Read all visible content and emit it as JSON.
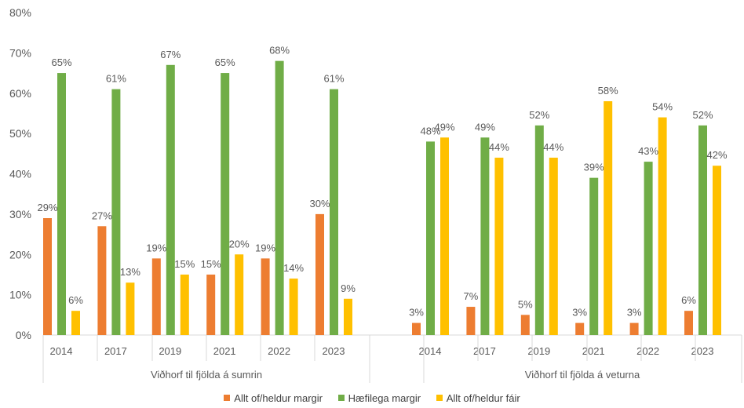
{
  "chart_data": {
    "type": "bar",
    "y_ticks": [
      "0%",
      "10%",
      "20%",
      "30%",
      "40%",
      "50%",
      "60%",
      "70%",
      "80%"
    ],
    "ylim": [
      0,
      80
    ],
    "grid": false,
    "legend_position": "bottom",
    "series_meta": [
      {
        "name": "Allt of/heldur margir",
        "color": "#ED7D31"
      },
      {
        "name": "Hæfilega margir",
        "color": "#70AD47"
      },
      {
        "name": "Allt of/heldur fáir",
        "color": "#FFC000"
      }
    ],
    "groups": [
      {
        "label": "Viðhorf til fjölda á sumrin",
        "categories": [
          "2014",
          "2017",
          "2019",
          "2021",
          "2022",
          "2023"
        ],
        "series": [
          {
            "name": "Allt of/heldur margir",
            "values": [
              29,
              27,
              19,
              15,
              19,
              30
            ],
            "labels": [
              "29%",
              "27%",
              "19%",
              "15%",
              "19%",
              "30%"
            ]
          },
          {
            "name": "Hæfilega margir",
            "values": [
              65,
              61,
              67,
              65,
              68,
              61
            ],
            "labels": [
              "65%",
              "61%",
              "67%",
              "65%",
              "68%",
              "61%"
            ]
          },
          {
            "name": "Allt of/heldur fáir",
            "values": [
              6,
              13,
              15,
              20,
              14,
              9
            ],
            "labels": [
              "6%",
              "13%",
              "15%",
              "20%",
              "14%",
              "9%"
            ]
          }
        ]
      },
      {
        "label": "Viðhorf til fjölda á veturna",
        "categories": [
          "2014",
          "2017",
          "2019",
          "2021",
          "2022",
          "2023"
        ],
        "series": [
          {
            "name": "Allt of/heldur margir",
            "values": [
              3,
              7,
              5,
              3,
              3,
              6
            ],
            "labels": [
              "3%",
              "7%",
              "5%",
              "3%",
              "3%",
              "6%"
            ]
          },
          {
            "name": "Hæfilega margir",
            "values": [
              48,
              49,
              52,
              39,
              43,
              52
            ],
            "labels": [
              "48%",
              "49%",
              "52%",
              "39%",
              "43%",
              "52%"
            ]
          },
          {
            "name": "Allt of/heldur fáir",
            "values": [
              49,
              44,
              44,
              58,
              54,
              42
            ],
            "labels": [
              "49%",
              "44%",
              "44%",
              "58%",
              "54%",
              "42%"
            ]
          }
        ]
      }
    ]
  }
}
